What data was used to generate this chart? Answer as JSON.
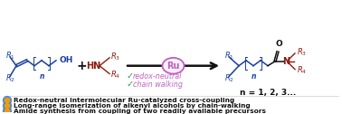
{
  "bg_color": "#ffffff",
  "blue_color": "#1a3fa0",
  "red_color": "#8b1a10",
  "purple_color": "#c060c0",
  "green_color": "#2a9a4a",
  "dark_color": "#111111",
  "bullet1": "Redox-neutral intermolecular Ru-catalyzed cross-coupling",
  "bullet2": "Long-range isomerization of alkenyl alcohols by chain-walking",
  "bullet3": "Amide synthesis from coupling of two readily available precursors",
  "italic1": "redox-neutral",
  "italic2": "chain walking",
  "ru_label": "Ru",
  "n_label": "n = 1, 2, 3...",
  "figsize": [
    3.78,
    1.26
  ],
  "dpi": 100
}
